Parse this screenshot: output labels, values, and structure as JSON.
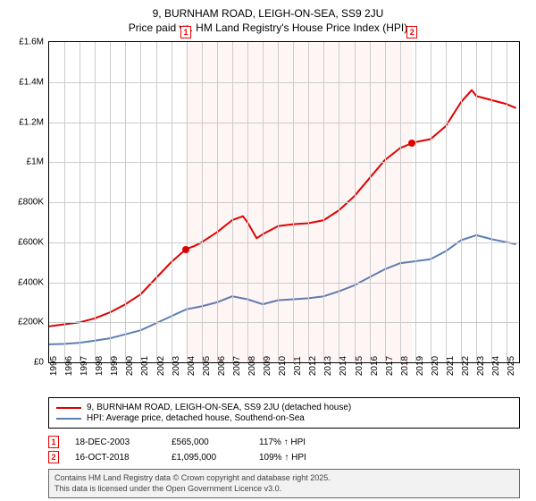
{
  "title": {
    "line1": "9, BURNHAM ROAD, LEIGH-ON-SEA, SS9 2JU",
    "line2": "Price paid vs. HM Land Registry's House Price Index (HPI)"
  },
  "chart": {
    "type": "line",
    "xlim": [
      1995,
      2025.8
    ],
    "ylim": [
      0,
      1600000
    ],
    "ytick_step": 200000,
    "yticks": [
      {
        "v": 0,
        "label": "£0"
      },
      {
        "v": 200000,
        "label": "£200K"
      },
      {
        "v": 400000,
        "label": "£400K"
      },
      {
        "v": 600000,
        "label": "£600K"
      },
      {
        "v": 800000,
        "label": "£800K"
      },
      {
        "v": 1000000,
        "label": "£1M"
      },
      {
        "v": 1200000,
        "label": "£1.2M"
      },
      {
        "v": 1400000,
        "label": "£1.4M"
      },
      {
        "v": 1600000,
        "label": "£1.6M"
      }
    ],
    "xticks": [
      1995,
      1996,
      1997,
      1998,
      1999,
      2000,
      2001,
      2002,
      2003,
      2004,
      2005,
      2006,
      2007,
      2008,
      2009,
      2010,
      2011,
      2012,
      2013,
      2014,
      2015,
      2016,
      2017,
      2018,
      2019,
      2020,
      2021,
      2022,
      2023,
      2024,
      2025
    ],
    "grid_color": "#cccccc",
    "background_color": "#ffffff",
    "shade_color": "rgba(240,60,60,0.05)",
    "shade_from_x": 2003.96,
    "shade_to_x": 2018.79,
    "series": {
      "property": {
        "label": "9, BURNHAM ROAD, LEIGH-ON-SEA, SS9 2JU (detached house)",
        "color": "#e00000",
        "line_width": 2,
        "data": [
          [
            1995,
            180000
          ],
          [
            1996,
            190000
          ],
          [
            1997,
            200000
          ],
          [
            1998,
            220000
          ],
          [
            1999,
            250000
          ],
          [
            2000,
            290000
          ],
          [
            2001,
            340000
          ],
          [
            2002,
            420000
          ],
          [
            2003,
            500000
          ],
          [
            2003.96,
            565000
          ],
          [
            2004.5,
            580000
          ],
          [
            2005,
            600000
          ],
          [
            2006,
            650000
          ],
          [
            2007,
            710000
          ],
          [
            2007.7,
            730000
          ],
          [
            2008,
            700000
          ],
          [
            2008.6,
            620000
          ],
          [
            2009,
            640000
          ],
          [
            2010,
            680000
          ],
          [
            2011,
            690000
          ],
          [
            2012,
            695000
          ],
          [
            2013,
            710000
          ],
          [
            2014,
            760000
          ],
          [
            2015,
            830000
          ],
          [
            2016,
            920000
          ],
          [
            2017,
            1010000
          ],
          [
            2018,
            1070000
          ],
          [
            2018.79,
            1095000
          ],
          [
            2019,
            1100000
          ],
          [
            2020,
            1115000
          ],
          [
            2021,
            1180000
          ],
          [
            2022,
            1300000
          ],
          [
            2022.7,
            1360000
          ],
          [
            2023,
            1330000
          ],
          [
            2024,
            1310000
          ],
          [
            2025,
            1290000
          ],
          [
            2025.6,
            1270000
          ]
        ]
      },
      "hpi": {
        "label": "HPI: Average price, detached house, Southend-on-Sea",
        "color": "#5b7fb4",
        "line_width": 2,
        "data": [
          [
            1995,
            90000
          ],
          [
            1996,
            92000
          ],
          [
            1997,
            98000
          ],
          [
            1998,
            108000
          ],
          [
            1999,
            120000
          ],
          [
            2000,
            140000
          ],
          [
            2001,
            160000
          ],
          [
            2002,
            195000
          ],
          [
            2003,
            230000
          ],
          [
            2004,
            265000
          ],
          [
            2005,
            280000
          ],
          [
            2006,
            300000
          ],
          [
            2007,
            330000
          ],
          [
            2008,
            315000
          ],
          [
            2009,
            290000
          ],
          [
            2010,
            310000
          ],
          [
            2011,
            315000
          ],
          [
            2012,
            320000
          ],
          [
            2013,
            330000
          ],
          [
            2014,
            355000
          ],
          [
            2015,
            385000
          ],
          [
            2016,
            425000
          ],
          [
            2017,
            465000
          ],
          [
            2018,
            495000
          ],
          [
            2019,
            505000
          ],
          [
            2020,
            515000
          ],
          [
            2021,
            555000
          ],
          [
            2022,
            610000
          ],
          [
            2023,
            635000
          ],
          [
            2024,
            615000
          ],
          [
            2025,
            600000
          ],
          [
            2025.6,
            590000
          ]
        ]
      }
    },
    "sale_points": [
      {
        "n": "1",
        "x": 2003.96,
        "y": 565000,
        "color": "#e00000"
      },
      {
        "n": "2",
        "x": 2018.79,
        "y": 1095000,
        "color": "#e00000"
      }
    ]
  },
  "legend": {
    "rows": [
      {
        "color": "#e00000",
        "label": "9, BURNHAM ROAD, LEIGH-ON-SEA, SS9 2JU (detached house)"
      },
      {
        "color": "#5b7fb4",
        "label": "HPI: Average price, detached house, Southend-on-Sea"
      }
    ]
  },
  "sales": [
    {
      "n": "1",
      "date": "18-DEC-2003",
      "price": "£565,000",
      "hpi": "117% ↑ HPI"
    },
    {
      "n": "2",
      "date": "16-OCT-2018",
      "price": "£1,095,000",
      "hpi": "109% ↑ HPI"
    }
  ],
  "footer": {
    "line1": "Contains HM Land Registry data © Crown copyright and database right 2025.",
    "line2": "This data is licensed under the Open Government Licence v3.0."
  }
}
